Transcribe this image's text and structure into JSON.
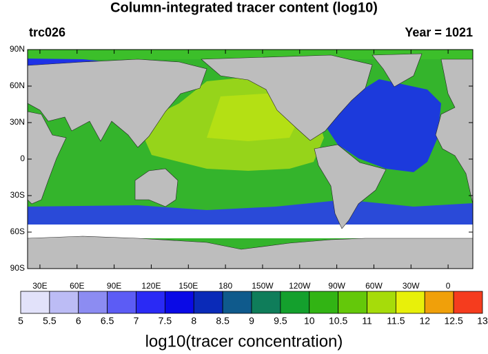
{
  "header": {
    "title": "Column-integrated tracer content (log10)",
    "left": "trc026",
    "right": "Year = 1021"
  },
  "map": {
    "lat_labels": [
      "90N",
      "60N",
      "30N",
      "0",
      "30S",
      "60S",
      "90S"
    ],
    "lon_labels": [
      "30E",
      "60E",
      "90E",
      "120E",
      "150E",
      "180",
      "150W",
      "120W",
      "90W",
      "60W",
      "30W",
      "0"
    ]
  },
  "colorbar": {
    "levels": [
      5,
      5.5,
      6,
      6.5,
      7,
      7.5,
      8,
      8.5,
      9,
      9.5,
      10,
      10.5,
      11,
      11.5,
      12,
      12.5,
      13
    ],
    "colors": [
      "#e2e2fa",
      "#bcbcf5",
      "#8c8cf2",
      "#5c5cf5",
      "#2a2af5",
      "#0a0ae6",
      "#0a2ab8",
      "#0f5a8c",
      "#0f7d5a",
      "#14a02d",
      "#32b414",
      "#64c80a",
      "#a6dc0a",
      "#e8f00a",
      "#f0a00a",
      "#f53c1e"
    ],
    "title": "log10(tracer concentration)"
  }
}
